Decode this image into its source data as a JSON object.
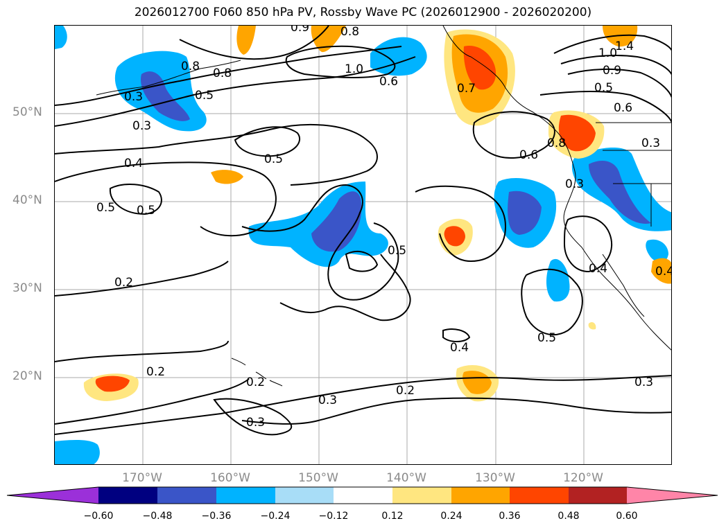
{
  "title": "2026012700 F060 850 hPa PV, Rossby Wave PC (2026012900 - 2026020200)",
  "lat_labels": [
    "50°N",
    "40°N",
    "30°N",
    "20°N"
  ],
  "lon_labels": [
    "170°W",
    "160°W",
    "150°W",
    "140°W",
    "130°W",
    "120°W"
  ],
  "colorbar": {
    "ticks": [
      "−0.60",
      "−0.48",
      "−0.36",
      "−0.24",
      "−0.12",
      "0.12",
      "0.24",
      "0.36",
      "0.48",
      "0.60"
    ],
    "colors": [
      "#9b30d9",
      "#000080",
      "#3a55c8",
      "#00b3ff",
      "#a8ddf7",
      "#ffffff",
      "#ffe680",
      "#ffa500",
      "#ff4500",
      "#b22222",
      "#ff85a8"
    ]
  },
  "contour_labels": [
    "0.8",
    "0.9",
    "0.8",
    "1.0",
    "0.6",
    "0.8",
    "0.5",
    "0.3",
    "0.3",
    "0.4",
    "0.5",
    "0.5",
    "0.2",
    "0.2",
    "0.2",
    "0.3",
    "0.3",
    "0.2",
    "0.4",
    "0.5",
    "0.5",
    "0.6",
    "0.3",
    "0.4",
    "0.5",
    "0.3",
    "0.4",
    "1.4",
    "1.0",
    "0.9",
    "0.5",
    "0.6",
    "0.3",
    "0.8",
    "0.7"
  ]
}
